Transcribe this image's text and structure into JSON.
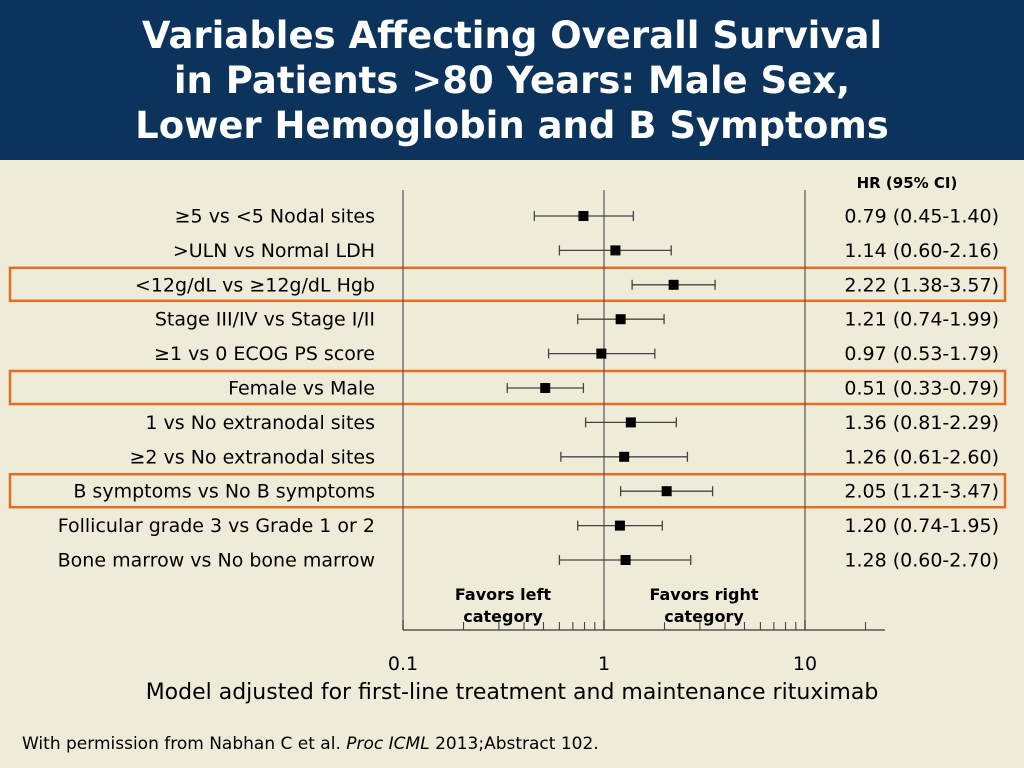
{
  "title": "Variables Affecting Overall Survival\nin Patients >80 Years: Male Sex,\nLower Hemoglobin and B Symptoms",
  "chart_data": {
    "type": "forest",
    "hr_header": "HR (95% CI)",
    "xscale": "log",
    "xlim": [
      0.1,
      25
    ],
    "xticks": [
      0.1,
      1,
      10
    ],
    "xtick_labels": [
      "0.1",
      "1",
      "10"
    ],
    "reference_line": 1,
    "favors_left": "Favors left\ncategory",
    "favors_right": "Favors right\ncategory",
    "highlight_color": "#e07020",
    "rows": [
      {
        "label": "≥5 vs <5 Nodal sites",
        "hr": 0.79,
        "lo": 0.45,
        "hi": 1.4,
        "text": "0.79 (0.45-1.40)",
        "highlight": false
      },
      {
        "label": ">ULN vs Normal LDH",
        "hr": 1.14,
        "lo": 0.6,
        "hi": 2.16,
        "text": "1.14 (0.60-2.16)",
        "highlight": false
      },
      {
        "label": "<12g/dL vs ≥12g/dL Hgb",
        "hr": 2.22,
        "lo": 1.38,
        "hi": 3.57,
        "text": "2.22 (1.38-3.57)",
        "highlight": true
      },
      {
        "label": "Stage III/IV vs Stage I/II",
        "hr": 1.21,
        "lo": 0.74,
        "hi": 1.99,
        "text": "1.21 (0.74-1.99)",
        "highlight": false
      },
      {
        "label": "≥1 vs 0 ECOG PS score",
        "hr": 0.97,
        "lo": 0.53,
        "hi": 1.79,
        "text": "0.97 (0.53-1.79)",
        "highlight": false
      },
      {
        "label": "Female vs Male",
        "hr": 0.51,
        "lo": 0.33,
        "hi": 0.79,
        "text": "0.51 (0.33-0.79)",
        "highlight": true
      },
      {
        "label": "1 vs No extranodal sites",
        "hr": 1.36,
        "lo": 0.81,
        "hi": 2.29,
        "text": "1.36 (0.81-2.29)",
        "highlight": false
      },
      {
        "label": "≥2 vs No extranodal sites",
        "hr": 1.26,
        "lo": 0.61,
        "hi": 2.6,
        "text": "1.26 (0.61-2.60)",
        "highlight": false
      },
      {
        "label": "B symptoms vs No B symptoms",
        "hr": 2.05,
        "lo": 1.21,
        "hi": 3.47,
        "text": "2.05 (1.21-3.47)",
        "highlight": true
      },
      {
        "label": "Follicular grade 3 vs Grade 1 or 2",
        "hr": 1.2,
        "lo": 0.74,
        "hi": 1.95,
        "text": "1.20 (0.74-1.95)",
        "highlight": false
      },
      {
        "label": "Bone marrow vs No bone marrow",
        "hr": 1.28,
        "lo": 0.6,
        "hi": 2.7,
        "text": "1.28 (0.60-2.70)",
        "highlight": false
      }
    ]
  },
  "footnote": "Model adjusted for first-line treatment and maintenance rituximab",
  "citation": {
    "prefix": "With permission from Nabhan C et al. ",
    "journal": "Proc ICML",
    "suffix": " 2013;Abstract 102."
  }
}
